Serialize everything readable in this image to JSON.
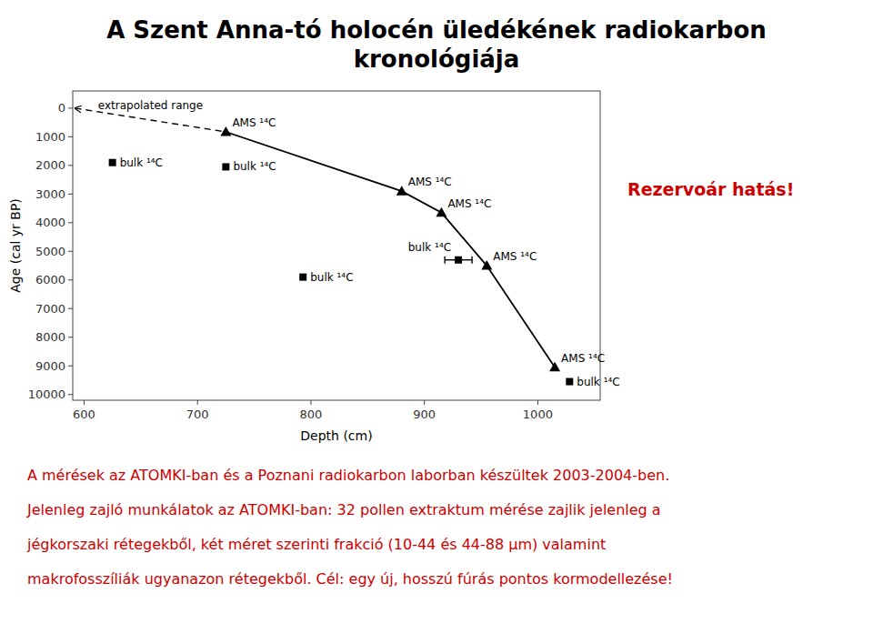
{
  "chart_data": {
    "type": "scatter",
    "title": [
      "A Szent Anna-tó holocén üledékének radiokarbon",
      "kronológiája"
    ],
    "xlabel": "Depth (cm)",
    "ylabel": "Age (cal yr BP)",
    "xlim": [
      590,
      1055
    ],
    "ylim": [
      10200,
      -600
    ],
    "xticks": [
      600,
      700,
      800,
      900,
      1000
    ],
    "yticks": [
      0,
      1000,
      2000,
      3000,
      4000,
      5000,
      6000,
      7000,
      8000,
      9000,
      10000
    ],
    "grid": false,
    "series": [
      {
        "type": "line",
        "line_style": "solid",
        "color": "#000000",
        "x": [
          725,
          880,
          915,
          955,
          1015
        ],
        "values": [
          830,
          2900,
          3650,
          5500,
          9050
        ]
      },
      {
        "type": "line",
        "line_style": "dashed",
        "color": "#000000",
        "x": [
          592,
          725
        ],
        "values": [
          0,
          830
        ],
        "label": "extrapolated range"
      },
      {
        "type": "scatter",
        "marker": "triangle",
        "color": "#000000",
        "x": [
          725,
          880,
          915,
          955,
          1015
        ],
        "values": [
          830,
          2900,
          3650,
          5500,
          9050
        ],
        "point_labels": [
          "AMS ¹⁴C",
          "AMS ¹⁴C",
          "AMS ¹⁴C",
          "AMS ¹⁴C",
          "AMS ¹⁴C"
        ]
      },
      {
        "type": "scatter",
        "marker": "square",
        "color": "#000000",
        "x": [
          625,
          725,
          793,
          930,
          1028
        ],
        "values": [
          1900,
          2050,
          5900,
          5300,
          9550
        ],
        "xerr": [
          null,
          null,
          null,
          12,
          null
        ],
        "point_labels": [
          "bulk ¹⁴C",
          "bulk ¹⁴C",
          "bulk ¹⁴C",
          "bulk ¹⁴C",
          "bulk ¹⁴C"
        ]
      }
    ],
    "annotations": [
      {
        "text": "Rezervoár hatás!",
        "color": "#cc0000"
      }
    ],
    "notes": {
      "color": "#cc0000",
      "lines": [
        "A mérések az ATOMKI-ban és a Poznani radiokarbon laborban készültek 2003-2004-ben.",
        "Jelenleg zajló munkálatok az ATOMKI-ban: 32 pollen extraktum mérése zajlik jelenleg a",
        "jégkorszaki rétegekből, két méret szerinti frakció (10-44 és 44-88 μm) valamint",
        "makrofosszíliák ugyanazon rétegekből. Cél: egy új, hosszú fúrás pontos kormodellezése!"
      ]
    }
  }
}
